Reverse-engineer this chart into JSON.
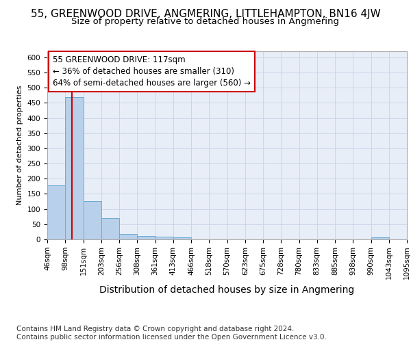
{
  "title": "55, GREENWOOD DRIVE, ANGMERING, LITTLEHAMPTON, BN16 4JW",
  "subtitle": "Size of property relative to detached houses in Angmering",
  "xlabel": "Distribution of detached houses by size in Angmering",
  "ylabel": "Number of detached properties",
  "bar_values": [
    178,
    468,
    127,
    70,
    19,
    11,
    8,
    6,
    0,
    0,
    0,
    0,
    0,
    0,
    0,
    0,
    0,
    0,
    6,
    0
  ],
  "bin_labels": [
    "46sqm",
    "98sqm",
    "151sqm",
    "203sqm",
    "256sqm",
    "308sqm",
    "361sqm",
    "413sqm",
    "466sqm",
    "518sqm",
    "570sqm",
    "623sqm",
    "675sqm",
    "728sqm",
    "780sqm",
    "833sqm",
    "885sqm",
    "938sqm",
    "990sqm",
    "1043sqm",
    "1095sqm"
  ],
  "bar_color": "#b8d0ea",
  "bar_edge_color": "#6aaad4",
  "vline_x": 1.365,
  "vline_color": "#cc0000",
  "annotation_text": "55 GREENWOOD DRIVE: 117sqm\n← 36% of detached houses are smaller (310)\n64% of semi-detached houses are larger (560) →",
  "annotation_box_color": "#ffffff",
  "annotation_box_edge": "#cc0000",
  "ylim": [
    0,
    620
  ],
  "yticks": [
    0,
    50,
    100,
    150,
    200,
    250,
    300,
    350,
    400,
    450,
    500,
    550,
    600
  ],
  "grid_color": "#ccd6e8",
  "background_color": "#e8eef8",
  "footer": "Contains HM Land Registry data © Crown copyright and database right 2024.\nContains public sector information licensed under the Open Government Licence v3.0.",
  "footer_fontsize": 7.5,
  "title_fontsize": 11,
  "subtitle_fontsize": 9.5,
  "xlabel_fontsize": 10,
  "ylabel_fontsize": 8,
  "tick_fontsize": 7.5,
  "annotation_fontsize": 8.5
}
